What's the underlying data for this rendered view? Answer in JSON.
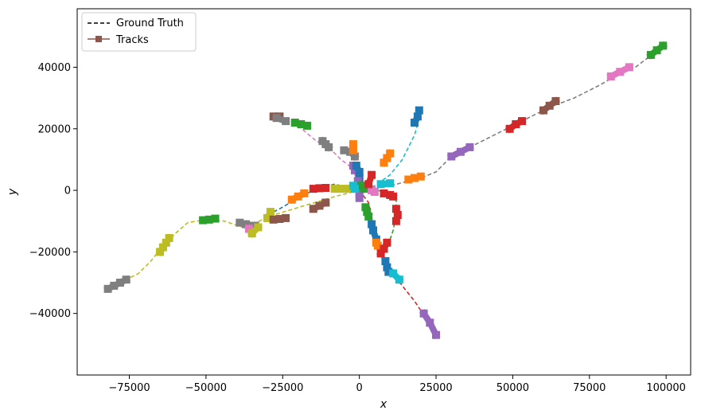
{
  "chart_data": {
    "type": "line",
    "title": "",
    "xlabel": "x",
    "ylabel": "y",
    "xlim": [
      -92000,
      108000
    ],
    "ylim": [
      -60000,
      59000
    ],
    "xticks": [
      -75000,
      -50000,
      -25000,
      0,
      25000,
      50000,
      75000,
      100000
    ],
    "xtick_labels": [
      "−75000",
      "−50000",
      "−25000",
      "0",
      "25000",
      "50000",
      "75000",
      "100000"
    ],
    "yticks": [
      -40000,
      -20000,
      0,
      20000,
      40000
    ],
    "ytick_labels": [
      "−40000",
      "−20000",
      "0",
      "20000",
      "40000"
    ],
    "grid": false,
    "legend": {
      "placement": "top-left",
      "entries": [
        {
          "label": "Ground Truth",
          "style": "dashed",
          "color": "#000000"
        },
        {
          "label": "Tracks",
          "style": "line-square-marker",
          "color": "#8c564b"
        }
      ]
    },
    "ground_truth": [
      {
        "color": "#7f7f7f",
        "points": [
          [
            0,
            0
          ],
          [
            10000,
            1500
          ],
          [
            20000,
            4000
          ],
          [
            25000,
            6000
          ],
          [
            30000,
            11000
          ],
          [
            36000,
            14000
          ],
          [
            42000,
            17000
          ],
          [
            50000,
            21000
          ],
          [
            56000,
            24000
          ],
          [
            62000,
            27000
          ],
          [
            70000,
            30000
          ],
          [
            78000,
            34000
          ],
          [
            85000,
            38000
          ],
          [
            90000,
            40000
          ],
          [
            96000,
            44500
          ],
          [
            100000,
            47000
          ]
        ]
      },
      {
        "color": "#bcbd22",
        "points": [
          [
            0,
            0
          ],
          [
            -8000,
            -2000
          ],
          [
            -18000,
            -5000
          ],
          [
            -28000,
            -8000
          ],
          [
            -35000,
            -11000
          ],
          [
            -38000,
            -12000
          ],
          [
            -44000,
            -10000
          ],
          [
            -50000,
            -9500
          ],
          [
            -56000,
            -10500
          ],
          [
            -60000,
            -14000
          ],
          [
            -64000,
            -18000
          ],
          [
            -68000,
            -23000
          ],
          [
            -72000,
            -27000
          ],
          [
            -76000,
            -29000
          ],
          [
            -82000,
            -32000
          ]
        ]
      },
      {
        "color": "#1f77b4",
        "points": [
          [
            0,
            0
          ],
          [
            -8000,
            2000
          ],
          [
            -14000,
            500
          ],
          [
            -20000,
            -2500
          ],
          [
            -26000,
            -6000
          ],
          [
            -30000,
            -8000
          ]
        ]
      },
      {
        "color": "#e377c2",
        "points": [
          [
            0,
            0
          ],
          [
            -2000,
            7000
          ],
          [
            -6000,
            10000
          ],
          [
            -10000,
            14000
          ],
          [
            -14000,
            16000
          ],
          [
            -20000,
            21000
          ],
          [
            -26000,
            23500
          ],
          [
            -28000,
            24000
          ]
        ]
      },
      {
        "color": "#17becf",
        "points": [
          [
            0,
            0
          ],
          [
            5000,
            1500
          ],
          [
            10000,
            5000
          ],
          [
            14000,
            10000
          ],
          [
            18000,
            18000
          ],
          [
            20000,
            25000
          ]
        ]
      },
      {
        "color": "#2ca02c",
        "points": [
          [
            0,
            0
          ],
          [
            6000,
            0
          ],
          [
            10000,
            -1000
          ],
          [
            12000,
            -3000
          ],
          [
            12000,
            -8000
          ],
          [
            11000,
            -13000
          ],
          [
            10000,
            -16000
          ],
          [
            9000,
            -19000
          ]
        ]
      },
      {
        "color": "#d62728",
        "points": [
          [
            0,
            0
          ],
          [
            3000,
            -4000
          ],
          [
            4000,
            -9000
          ],
          [
            5000,
            -15000
          ],
          [
            6000,
            -19000
          ],
          [
            8000,
            -23000
          ],
          [
            10000,
            -26000
          ],
          [
            14000,
            -31000
          ],
          [
            18000,
            -36000
          ],
          [
            20000,
            -39000
          ],
          [
            22000,
            -41000
          ],
          [
            25000,
            -47000
          ]
        ]
      }
    ],
    "tracks": [
      {
        "color": "#7f7f7f",
        "points": [
          [
            -82000,
            -32000
          ],
          [
            -80000,
            -31000
          ],
          [
            -78000,
            -30000
          ],
          [
            -76000,
            -29000
          ]
        ]
      },
      {
        "color": "#bcbd22",
        "points": [
          [
            -65000,
            -20000
          ],
          [
            -64000,
            -18500
          ],
          [
            -63000,
            -17000
          ],
          [
            -62000,
            -15500
          ]
        ]
      },
      {
        "color": "#2ca02c",
        "points": [
          [
            -51000,
            -9700
          ],
          [
            -49000,
            -9500
          ],
          [
            -47000,
            -9200
          ]
        ]
      },
      {
        "color": "#7f7f7f",
        "points": [
          [
            -39000,
            -10500
          ],
          [
            -37000,
            -11000
          ],
          [
            -34000,
            -11500
          ]
        ]
      },
      {
        "color": "#e377c2",
        "points": [
          [
            -36000,
            -12500
          ],
          [
            -35000,
            -13500
          ]
        ]
      },
      {
        "color": "#bcbd22",
        "points": [
          [
            -35000,
            -14000
          ],
          [
            -33000,
            -12000
          ]
        ]
      },
      {
        "color": "#bcbd22",
        "points": [
          [
            -30000,
            -9000
          ],
          [
            -29000,
            -7000
          ]
        ]
      },
      {
        "color": "#8c564b",
        "points": [
          [
            -28000,
            -9500
          ],
          [
            -26000,
            -9300
          ],
          [
            -24000,
            -9000
          ]
        ]
      },
      {
        "color": "#ff7f0e",
        "points": [
          [
            -22000,
            -3000
          ],
          [
            -20000,
            -2000
          ],
          [
            -18000,
            -1000
          ]
        ]
      },
      {
        "color": "#d62728",
        "points": [
          [
            -15000,
            500
          ],
          [
            -13000,
            700
          ],
          [
            -11000,
            800
          ]
        ]
      },
      {
        "color": "#8c564b",
        "points": [
          [
            -15000,
            -6000
          ],
          [
            -13000,
            -5000
          ],
          [
            -11000,
            -4000
          ]
        ]
      },
      {
        "color": "#bcbd22",
        "points": [
          [
            -8000,
            500
          ],
          [
            -6000,
            500
          ],
          [
            -4000,
            500
          ]
        ]
      },
      {
        "color": "#8c564b",
        "points": [
          [
            -28000,
            24000
          ],
          [
            -26000,
            24000
          ]
        ]
      },
      {
        "color": "#7f7f7f",
        "points": [
          [
            -27000,
            23500
          ],
          [
            -24000,
            22500
          ]
        ]
      },
      {
        "color": "#2ca02c",
        "points": [
          [
            -21000,
            22000
          ],
          [
            -19000,
            21500
          ],
          [
            -17000,
            21000
          ]
        ]
      },
      {
        "color": "#7f7f7f",
        "points": [
          [
            -12000,
            16000
          ],
          [
            -11000,
            15000
          ],
          [
            -10000,
            14000
          ]
        ]
      },
      {
        "color": "#7f7f7f",
        "points": [
          [
            -5000,
            13000
          ],
          [
            -3000,
            12500
          ],
          [
            -1500,
            11000
          ]
        ]
      },
      {
        "color": "#ff7f0e",
        "points": [
          [
            -2000,
            15000
          ],
          [
            -2000,
            13000
          ]
        ]
      },
      {
        "color": "#9467bd",
        "points": [
          [
            -2000,
            8000
          ],
          [
            -1500,
            6500
          ]
        ]
      },
      {
        "color": "#1f77b4",
        "points": [
          [
            -1000,
            8000
          ],
          [
            0,
            6000
          ],
          [
            0,
            4000
          ]
        ]
      },
      {
        "color": "#9467bd",
        "points": [
          [
            -500,
            3000
          ],
          [
            -500,
            1000
          ]
        ]
      },
      {
        "color": "#9467bd",
        "points": [
          [
            0,
            -1000
          ],
          [
            0,
            -2500
          ]
        ]
      },
      {
        "color": "#2ca02c",
        "points": [
          [
            500,
            1500
          ],
          [
            1500,
            500
          ]
        ]
      },
      {
        "color": "#17becf",
        "points": [
          [
            -2000,
            1500
          ],
          [
            -1500,
            500
          ]
        ]
      },
      {
        "color": "#e377c2",
        "points": [
          [
            4000,
            0
          ],
          [
            5000,
            -500
          ]
        ]
      },
      {
        "color": "#17becf",
        "points": [
          [
            7000,
            2000
          ],
          [
            10000,
            2300
          ]
        ]
      },
      {
        "color": "#d62728",
        "points": [
          [
            3000,
            2000
          ],
          [
            4000,
            5000
          ]
        ]
      },
      {
        "color": "#ff7f0e",
        "points": [
          [
            8000,
            9000
          ],
          [
            9000,
            10500
          ],
          [
            10000,
            12000
          ]
        ]
      },
      {
        "color": "#1f77b4",
        "points": [
          [
            18000,
            22000
          ],
          [
            19000,
            24000
          ],
          [
            19500,
            26000
          ]
        ]
      },
      {
        "color": "#ff7f0e",
        "points": [
          [
            16000,
            3500
          ],
          [
            18000,
            4000
          ],
          [
            20000,
            4500
          ]
        ]
      },
      {
        "color": "#9467bd",
        "points": [
          [
            30000,
            11000
          ],
          [
            33000,
            12500
          ],
          [
            36000,
            14000
          ]
        ]
      },
      {
        "color": "#d62728",
        "points": [
          [
            49000,
            20000
          ],
          [
            51000,
            21500
          ],
          [
            53000,
            22500
          ]
        ]
      },
      {
        "color": "#8c564b",
        "points": [
          [
            60000,
            26000
          ],
          [
            62000,
            27500
          ],
          [
            64000,
            29000
          ]
        ]
      },
      {
        "color": "#e377c2",
        "points": [
          [
            82000,
            37000
          ],
          [
            85000,
            38500
          ],
          [
            88000,
            40000
          ]
        ]
      },
      {
        "color": "#2ca02c",
        "points": [
          [
            95000,
            44000
          ],
          [
            97000,
            45500
          ],
          [
            99000,
            47000
          ]
        ]
      },
      {
        "color": "#d62728",
        "points": [
          [
            8000,
            -1000
          ],
          [
            10000,
            -1500
          ],
          [
            11000,
            -2000
          ]
        ]
      },
      {
        "color": "#d62728",
        "points": [
          [
            12000,
            -6000
          ],
          [
            12500,
            -8000
          ],
          [
            12000,
            -10000
          ]
        ]
      },
      {
        "color": "#2ca02c",
        "points": [
          [
            2000,
            -5500
          ],
          [
            2500,
            -7000
          ],
          [
            3000,
            -8500
          ]
        ]
      },
      {
        "color": "#1f77b4",
        "points": [
          [
            4000,
            -11000
          ],
          [
            4500,
            -13000
          ],
          [
            5500,
            -16000
          ]
        ]
      },
      {
        "color": "#ff7f0e",
        "points": [
          [
            5500,
            -17000
          ],
          [
            6000,
            -18000
          ]
        ]
      },
      {
        "color": "#d62728",
        "points": [
          [
            7000,
            -20500
          ],
          [
            8000,
            -19000
          ],
          [
            9000,
            -17000
          ]
        ]
      },
      {
        "color": "#1f77b4",
        "points": [
          [
            8500,
            -23000
          ],
          [
            9000,
            -25000
          ],
          [
            9500,
            -26500
          ]
        ]
      },
      {
        "color": "#17becf",
        "points": [
          [
            11000,
            -27000
          ],
          [
            13000,
            -29000
          ]
        ]
      },
      {
        "color": "#9467bd",
        "points": [
          [
            21000,
            -40000
          ],
          [
            23000,
            -43000
          ],
          [
            25000,
            -47000
          ]
        ]
      }
    ]
  }
}
